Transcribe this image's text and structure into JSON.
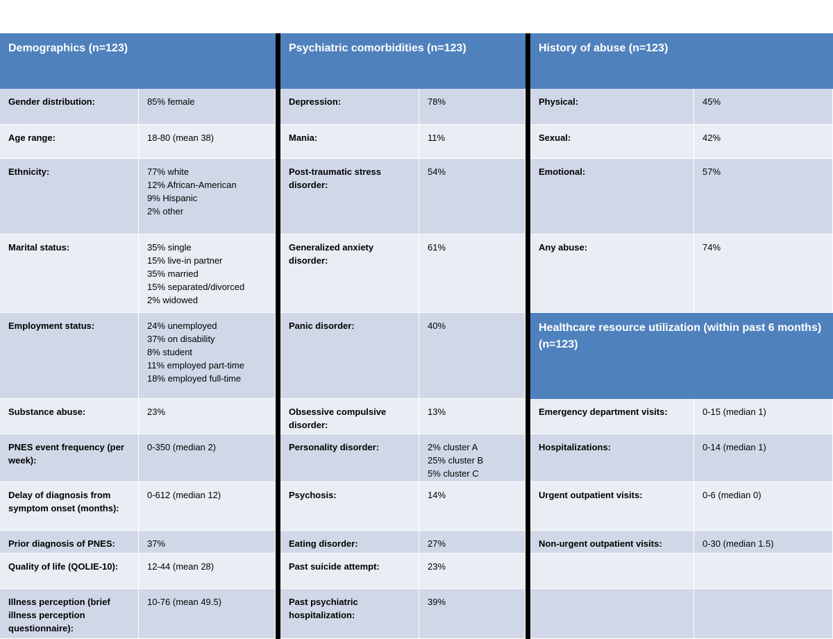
{
  "sections": [
    {
      "title": "Demographics (n=123)",
      "rows": [
        {
          "label": "Gender distribution:",
          "value": [
            "85% female"
          ]
        },
        {
          "label": "Age range:",
          "value": [
            "18-80 (mean 38)"
          ]
        },
        {
          "label": "Ethnicity:",
          "value": [
            "77% white",
            "12% African-American",
            "9% Hispanic",
            "2% other"
          ]
        },
        {
          "label": "Marital status:",
          "value": [
            "35% single",
            "15% live-in partner",
            "35% married",
            "15% separated/divorced",
            "2% widowed"
          ]
        },
        {
          "label": "Employment status:",
          "value": [
            "24% unemployed",
            "37% on disability",
            "8% student",
            "11% employed  part-time",
            "18% employed  full-time"
          ]
        },
        {
          "label": "Substance abuse:",
          "value": [
            "23%"
          ]
        },
        {
          "label": "PNES event frequency (per week):",
          "value": [
            "0-350 (median 2)"
          ]
        },
        {
          "label": "Delay of diagnosis from symptom onset (months):",
          "value": [
            "0-612 (median 12)"
          ]
        },
        {
          "label": "Prior diagnosis of PNES:",
          "value": [
            "37%"
          ]
        },
        {
          "label": "Quality of life (QOLIE-10):",
          "value": [
            "12-44 (mean 28)"
          ]
        },
        {
          "label": "Illness perception (brief illness perception questionnaire):",
          "value": [
            "10-76 (mean 49.5)"
          ]
        }
      ]
    },
    {
      "title": "Psychiatric comorbidities (n=123)",
      "rows": [
        {
          "label": "Depression:",
          "value": [
            "78%"
          ]
        },
        {
          "label": "Mania:",
          "value": [
            "11%"
          ]
        },
        {
          "label": "Post-traumatic stress disorder:",
          "value": [
            "54%"
          ]
        },
        {
          "label": "Generalized anxiety disorder:",
          "value": [
            "61%"
          ]
        },
        {
          "label": "Panic disorder:",
          "value": [
            "40%"
          ]
        },
        {
          "label": "Obsessive compulsive disorder:",
          "value": [
            "13%"
          ]
        },
        {
          "label": "Personality disorder:",
          "value": [
            "2% cluster A",
            "25% cluster B",
            "5% cluster C"
          ]
        },
        {
          "label": "Psychosis:",
          "value": [
            "14%"
          ]
        },
        {
          "label": "Eating disorder:",
          "value": [
            "27%"
          ]
        },
        {
          "label": "Past suicide attempt:",
          "value": [
            "23%"
          ]
        },
        {
          "label": "Past psychiatric hospitalization:",
          "value": [
            "39%"
          ]
        }
      ]
    },
    {
      "title": "History of abuse (n=123)",
      "rows": [
        {
          "label": "Physical:",
          "value": [
            "45%"
          ]
        },
        {
          "label": "Sexual:",
          "value": [
            "42%"
          ]
        },
        {
          "label": "Emotional:",
          "value": [
            "57%"
          ]
        },
        {
          "label": "Any abuse:",
          "value": [
            "74%"
          ]
        }
      ]
    },
    {
      "title": "Healthcare resource utilization (within past 6 months) (n=123)",
      "rows": [
        {
          "label": "Emergency department visits:",
          "value": [
            "0-15 (median 1)"
          ]
        },
        {
          "label": "Hospitalizations:",
          "value": [
            "0-14 (median 1)"
          ]
        },
        {
          "label": "Urgent outpatient visits:",
          "value": [
            "0-6 (median 0)"
          ]
        },
        {
          "label": "Non-urgent outpatient visits:",
          "value": [
            "0-30 (median 1.5)"
          ]
        }
      ]
    }
  ]
}
